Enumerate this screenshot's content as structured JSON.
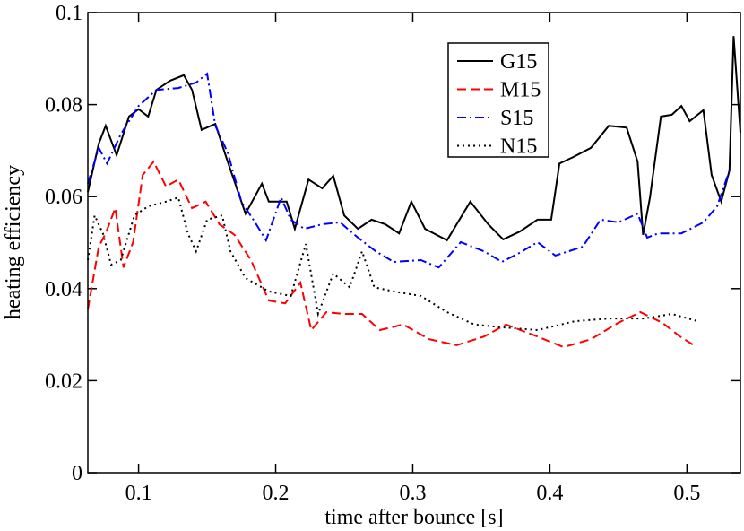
{
  "chart_data": {
    "type": "line",
    "xlabel": "time after bounce [s]",
    "ylabel": "heating efficiency",
    "xlim": [
      0.063,
      0.539
    ],
    "ylim": [
      0,
      0.1
    ],
    "xticks": [
      0.1,
      0.2,
      0.3,
      0.4,
      0.5
    ],
    "yticks": [
      0,
      0.02,
      0.04,
      0.06,
      0.08,
      0.1
    ],
    "legend": "upper right",
    "series": [
      {
        "name": "G15",
        "color": "#000000",
        "style": "solid",
        "x": [
          0.063,
          0.071,
          0.076,
          0.084,
          0.093,
          0.1,
          0.107,
          0.113,
          0.123,
          0.133,
          0.139,
          0.146,
          0.156,
          0.165,
          0.178,
          0.19,
          0.195,
          0.208,
          0.214,
          0.224,
          0.234,
          0.242,
          0.25,
          0.26,
          0.27,
          0.28,
          0.29,
          0.299,
          0.309,
          0.325,
          0.342,
          0.355,
          0.366,
          0.378,
          0.391,
          0.401,
          0.407,
          0.417,
          0.43,
          0.443,
          0.456,
          0.464,
          0.468,
          0.473,
          0.481,
          0.489,
          0.496,
          0.502,
          0.512,
          0.518,
          0.525,
          0.531,
          0.534,
          0.539
        ],
        "values": [
          0.061,
          0.0715,
          0.0754,
          0.069,
          0.0774,
          0.079,
          0.0774,
          0.0832,
          0.0852,
          0.0864,
          0.0832,
          0.0745,
          0.0758,
          0.0676,
          0.0563,
          0.0628,
          0.0589,
          0.0589,
          0.053,
          0.0637,
          0.0618,
          0.0645,
          0.0559,
          0.053,
          0.055,
          0.054,
          0.052,
          0.0589,
          0.053,
          0.0505,
          0.0589,
          0.054,
          0.0507,
          0.0524,
          0.055,
          0.055,
          0.0672,
          0.0686,
          0.0706,
          0.0754,
          0.075,
          0.0676,
          0.0517,
          0.0598,
          0.0774,
          0.0778,
          0.0797,
          0.0764,
          0.0788,
          0.0647,
          0.0589,
          0.0657,
          0.0949,
          0.0739
        ]
      },
      {
        "name": "M15",
        "color": "#ff0000",
        "style": "dashed",
        "x": [
          0.063,
          0.071,
          0.076,
          0.083,
          0.089,
          0.096,
          0.103,
          0.111,
          0.12,
          0.129,
          0.139,
          0.149,
          0.159,
          0.17,
          0.182,
          0.195,
          0.207,
          0.218,
          0.226,
          0.237,
          0.25,
          0.263,
          0.276,
          0.293,
          0.312,
          0.332,
          0.352,
          0.368,
          0.391,
          0.41,
          0.43,
          0.45,
          0.466,
          0.482,
          0.495,
          0.505
        ],
        "values": [
          0.0355,
          0.0491,
          0.052,
          0.0575,
          0.0446,
          0.0501,
          0.0647,
          0.0676,
          0.0622,
          0.0637,
          0.0575,
          0.0589,
          0.054,
          0.0517,
          0.0462,
          0.0374,
          0.0368,
          0.0413,
          0.031,
          0.0349,
          0.0345,
          0.0345,
          0.031,
          0.0322,
          0.029,
          0.0277,
          0.0296,
          0.0322,
          0.0296,
          0.0273,
          0.029,
          0.0326,
          0.0349,
          0.0326,
          0.0296,
          0.0277
        ]
      },
      {
        "name": "S15",
        "color": "#0000ff",
        "style": "dashdot",
        "x": [
          0.063,
          0.071,
          0.077,
          0.087,
          0.1,
          0.113,
          0.129,
          0.142,
          0.15,
          0.156,
          0.165,
          0.175,
          0.185,
          0.193,
          0.204,
          0.211,
          0.221,
          0.234,
          0.247,
          0.26,
          0.273,
          0.286,
          0.306,
          0.319,
          0.335,
          0.352,
          0.365,
          0.378,
          0.391,
          0.404,
          0.424,
          0.437,
          0.45,
          0.464,
          0.471,
          0.479,
          0.496,
          0.512,
          0.522,
          0.531
        ],
        "values": [
          0.0628,
          0.0706,
          0.0672,
          0.0735,
          0.0797,
          0.0832,
          0.0836,
          0.0848,
          0.0867,
          0.0754,
          0.0696,
          0.0589,
          0.0544,
          0.0505,
          0.0598,
          0.055,
          0.053,
          0.054,
          0.0544,
          0.0511,
          0.0481,
          0.0458,
          0.0462,
          0.0446,
          0.0501,
          0.0481,
          0.0458,
          0.0478,
          0.0501,
          0.0472,
          0.0491,
          0.055,
          0.0544,
          0.0563,
          0.0511,
          0.052,
          0.052,
          0.0544,
          0.0579,
          0.0657
        ]
      },
      {
        "name": "N15",
        "color": "#000000",
        "style": "dotted",
        "x": [
          0.063,
          0.068,
          0.074,
          0.08,
          0.087,
          0.097,
          0.107,
          0.12,
          0.129,
          0.136,
          0.142,
          0.15,
          0.161,
          0.167,
          0.178,
          0.195,
          0.211,
          0.222,
          0.231,
          0.242,
          0.254,
          0.263,
          0.272,
          0.286,
          0.306,
          0.325,
          0.345,
          0.365,
          0.391,
          0.418,
          0.443,
          0.469,
          0.489,
          0.508
        ],
        "values": [
          0.0462,
          0.0559,
          0.052,
          0.0452,
          0.0462,
          0.0559,
          0.0579,
          0.0589,
          0.0598,
          0.052,
          0.0481,
          0.055,
          0.0559,
          0.0481,
          0.0423,
          0.0394,
          0.0384,
          0.0497,
          0.0345,
          0.0433,
          0.0403,
          0.0481,
          0.0403,
          0.0394,
          0.0384,
          0.0349,
          0.0322,
          0.0316,
          0.031,
          0.0329,
          0.0335,
          0.0335,
          0.0345,
          0.0329
        ]
      }
    ]
  }
}
